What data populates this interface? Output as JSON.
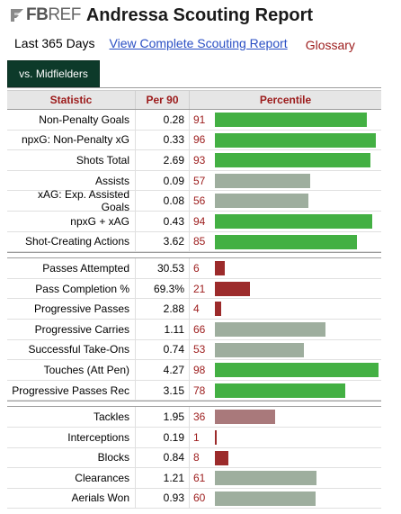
{
  "header": {
    "logo_fb": "FB",
    "logo_ref": "REF",
    "title": "Andressa Scouting Report"
  },
  "subnav": {
    "period": "Last 365 Days",
    "complete_link": "View Complete Scouting Report",
    "glossary": "Glossary"
  },
  "tab": {
    "label": "vs. Midfielders"
  },
  "table": {
    "headers": {
      "statistic": "Statistic",
      "per90": "Per 90",
      "percentile": "Percentile"
    },
    "colors": {
      "high": "#43b043",
      "mid": "#9eae9e",
      "low": "#a9797b",
      "very_low": "#9c2b2b"
    },
    "groups": [
      [
        {
          "stat": "Non-Penalty Goals",
          "per90": "0.28",
          "percentile": "91",
          "level": "high"
        },
        {
          "stat": "npxG: Non-Penalty xG",
          "per90": "0.33",
          "percentile": "96",
          "level": "high"
        },
        {
          "stat": "Shots Total",
          "per90": "2.69",
          "percentile": "93",
          "level": "high"
        },
        {
          "stat": "Assists",
          "per90": "0.09",
          "percentile": "57",
          "level": "mid"
        },
        {
          "stat": "xAG: Exp. Assisted Goals",
          "per90": "0.08",
          "percentile": "56",
          "level": "mid"
        },
        {
          "stat": "npxG + xAG",
          "per90": "0.43",
          "percentile": "94",
          "level": "high"
        },
        {
          "stat": "Shot-Creating Actions",
          "per90": "3.62",
          "percentile": "85",
          "level": "high"
        }
      ],
      [
        {
          "stat": "Passes Attempted",
          "per90": "30.53",
          "percentile": "6",
          "level": "very_low"
        },
        {
          "stat": "Pass Completion %",
          "per90": "69.3%",
          "percentile": "21",
          "level": "very_low"
        },
        {
          "stat": "Progressive Passes",
          "per90": "2.88",
          "percentile": "4",
          "level": "very_low"
        },
        {
          "stat": "Progressive Carries",
          "per90": "1.11",
          "percentile": "66",
          "level": "mid"
        },
        {
          "stat": "Successful Take-Ons",
          "per90": "0.74",
          "percentile": "53",
          "level": "mid"
        },
        {
          "stat": "Touches (Att Pen)",
          "per90": "4.27",
          "percentile": "98",
          "level": "high"
        },
        {
          "stat": "Progressive Passes Rec",
          "per90": "3.15",
          "percentile": "78",
          "level": "high"
        }
      ],
      [
        {
          "stat": "Tackles",
          "per90": "1.95",
          "percentile": "36",
          "level": "low"
        },
        {
          "stat": "Interceptions",
          "per90": "0.19",
          "percentile": "1",
          "level": "very_low"
        },
        {
          "stat": "Blocks",
          "per90": "0.84",
          "percentile": "8",
          "level": "very_low"
        },
        {
          "stat": "Clearances",
          "per90": "1.21",
          "percentile": "61",
          "level": "mid"
        },
        {
          "stat": "Aerials Won",
          "per90": "0.93",
          "percentile": "60",
          "level": "mid"
        }
      ]
    ]
  }
}
